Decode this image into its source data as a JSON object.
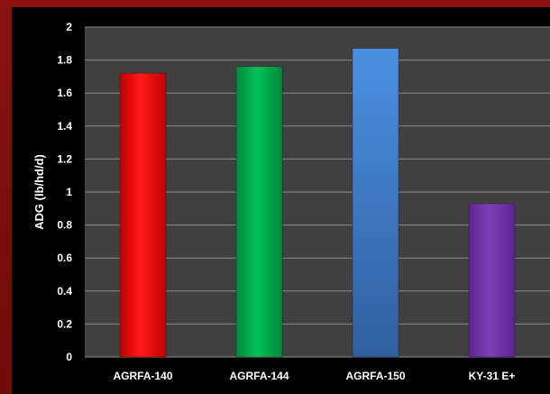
{
  "chart_data": {
    "type": "bar",
    "title": "",
    "xlabel": "",
    "ylabel": "ADG (lb/hd/d)",
    "ylim": [
      0,
      2
    ],
    "yticks": [
      "0",
      "0.2",
      "0.4",
      "0.6",
      "0.8",
      "1",
      "1.2",
      "1.4",
      "1.6",
      "1.8",
      "2"
    ],
    "categories": [
      "AGRFA-140",
      "AGRFA-144",
      "AGRFA-150",
      "KY-31 E+"
    ],
    "values": [
      1.72,
      1.76,
      1.87,
      0.93
    ],
    "colors": [
      "#ff0000",
      "#00b050",
      "#4a90e2",
      "#7030a0"
    ],
    "grid": true,
    "background": "#404040"
  }
}
